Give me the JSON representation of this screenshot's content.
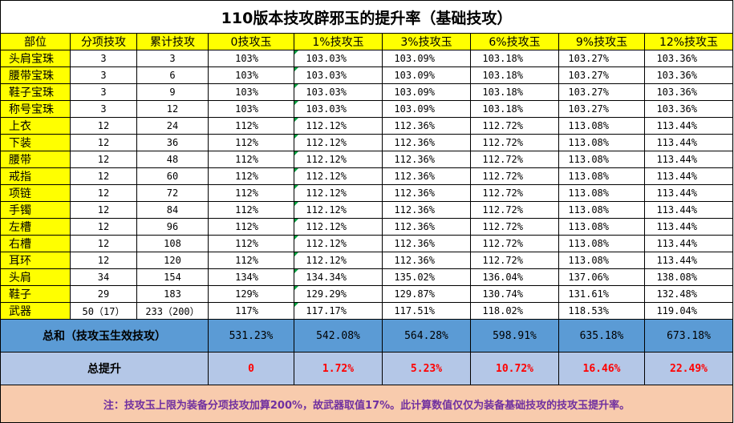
{
  "title": "110版本技攻辟邪玉的提升率（基础技攻）",
  "headers": [
    "部位",
    "分项技攻",
    "累计技攻",
    "0技攻玉",
    "1%技攻玉",
    "3%技攻玉",
    "6%技攻玉",
    "9%技攻玉",
    "12%技攻玉"
  ],
  "rows": [
    [
      "头肩宝珠",
      "3",
      "3",
      "103%",
      "103.03%",
      "103.09%",
      "103.18%",
      "103.27%",
      "103.36%"
    ],
    [
      "腰带宝珠",
      "3",
      "6",
      "103%",
      "103.03%",
      "103.09%",
      "103.18%",
      "103.27%",
      "103.36%"
    ],
    [
      "鞋子宝珠",
      "3",
      "9",
      "103%",
      "103.03%",
      "103.09%",
      "103.18%",
      "103.27%",
      "103.36%"
    ],
    [
      "称号宝珠",
      "3",
      "12",
      "103%",
      "103.03%",
      "103.09%",
      "103.18%",
      "103.27%",
      "103.36%"
    ],
    [
      "上衣",
      "12",
      "24",
      "112%",
      "112.12%",
      "112.36%",
      "112.72%",
      "113.08%",
      "113.44%"
    ],
    [
      "下装",
      "12",
      "36",
      "112%",
      "112.12%",
      "112.36%",
      "112.72%",
      "113.08%",
      "113.44%"
    ],
    [
      "腰带",
      "12",
      "48",
      "112%",
      "112.12%",
      "112.36%",
      "112.72%",
      "113.08%",
      "113.44%"
    ],
    [
      "戒指",
      "12",
      "60",
      "112%",
      "112.12%",
      "112.36%",
      "112.72%",
      "113.08%",
      "113.44%"
    ],
    [
      "项链",
      "12",
      "72",
      "112%",
      "112.12%",
      "112.36%",
      "112.72%",
      "113.08%",
      "113.44%"
    ],
    [
      "手镯",
      "12",
      "84",
      "112%",
      "112.12%",
      "112.36%",
      "112.72%",
      "113.08%",
      "113.44%"
    ],
    [
      "左槽",
      "12",
      "96",
      "112%",
      "112.12%",
      "112.36%",
      "112.72%",
      "113.08%",
      "113.44%"
    ],
    [
      "右槽",
      "12",
      "108",
      "112%",
      "112.12%",
      "112.36%",
      "112.72%",
      "113.08%",
      "113.44%"
    ],
    [
      "耳环",
      "12",
      "120",
      "112%",
      "112.12%",
      "112.36%",
      "112.72%",
      "113.08%",
      "113.44%"
    ],
    [
      "头肩",
      "34",
      "154",
      "134%",
      "134.34%",
      "135.02%",
      "136.04%",
      "137.06%",
      "138.08%"
    ],
    [
      "鞋子",
      "29",
      "183",
      "129%",
      "129.29%",
      "129.87%",
      "130.74%",
      "131.61%",
      "132.48%"
    ],
    [
      "武器",
      "50（17）",
      "233（200）",
      "117%",
      "117.17%",
      "117.51%",
      "118.02%",
      "118.53%",
      "119.04%"
    ]
  ],
  "total": {
    "label": "总和（技攻玉生效技攻）",
    "values": [
      "531.23%",
      "542.08%",
      "564.28%",
      "598.91%",
      "635.18%",
      "673.18%"
    ]
  },
  "increase": {
    "label": "总提升",
    "values": [
      "0",
      "1.72%",
      "5.23%",
      "10.72%",
      "16.46%",
      "22.49%"
    ]
  },
  "note": "注：技攻玉上限为装备分项技攻加算200%，故武器取值17%。此计算数值仅仅为装备基础技攻的技攻玉提升率。",
  "colors": {
    "header_bg": "#ffff00",
    "total_bg": "#5b9bd5",
    "increase_bg": "#b4c7e7",
    "increase_text": "#ff0000",
    "note_bg": "#f8cbad",
    "note_text": "#7030a0",
    "cell_marker": "#00a040"
  }
}
